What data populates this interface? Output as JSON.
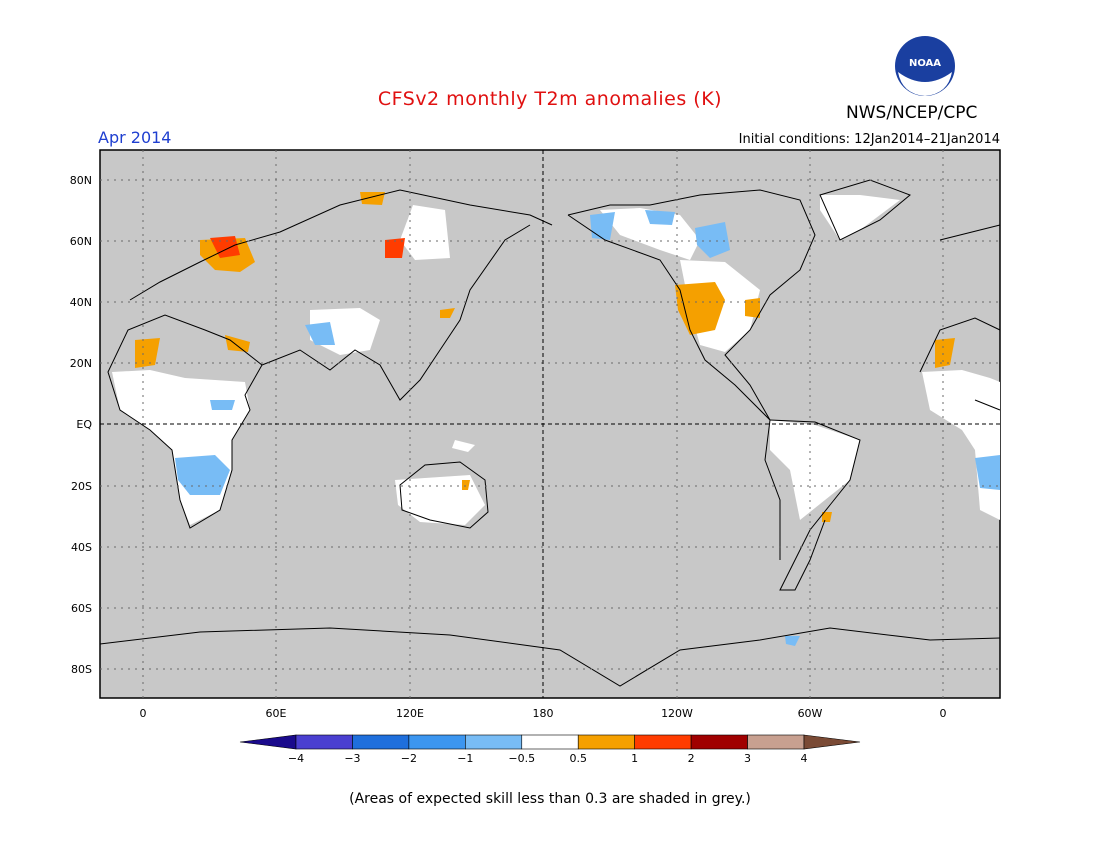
{
  "title": "CFSv2 monthly T2m anomalies (K)",
  "org": "NWS/NCEP/CPC",
  "period": "Apr 2014",
  "initial_conditions": "Initial conditions: 12Jan2014–21Jan2014",
  "footnote": "(Areas of expected skill less than 0.3 are shaded in grey.)",
  "logo_text": "NOAA",
  "lat_ticks": [
    "80N",
    "60N",
    "40N",
    "20N",
    "EQ",
    "20S",
    "40S",
    "60S",
    "80S"
  ],
  "lon_ticks": [
    "0",
    "60E",
    "120E",
    "180",
    "120W",
    "60W",
    "0"
  ],
  "legend": {
    "labels": [
      "−4",
      "−3",
      "−2",
      "−1",
      "−0.5",
      "0.5",
      "1",
      "2",
      "3",
      "4"
    ],
    "colors": [
      "#1a0a8c",
      "#4a3fd0",
      "#1f6fdc",
      "#3c96f0",
      "#78bcf5",
      "#ffffff",
      "#f5a000",
      "#ff3c00",
      "#a00000",
      "#c8a090",
      "#7a4a35"
    ]
  },
  "colors": {
    "skill_mask": "#c8c8c8",
    "title": "#e01010",
    "period": "#1f3fd0"
  }
}
